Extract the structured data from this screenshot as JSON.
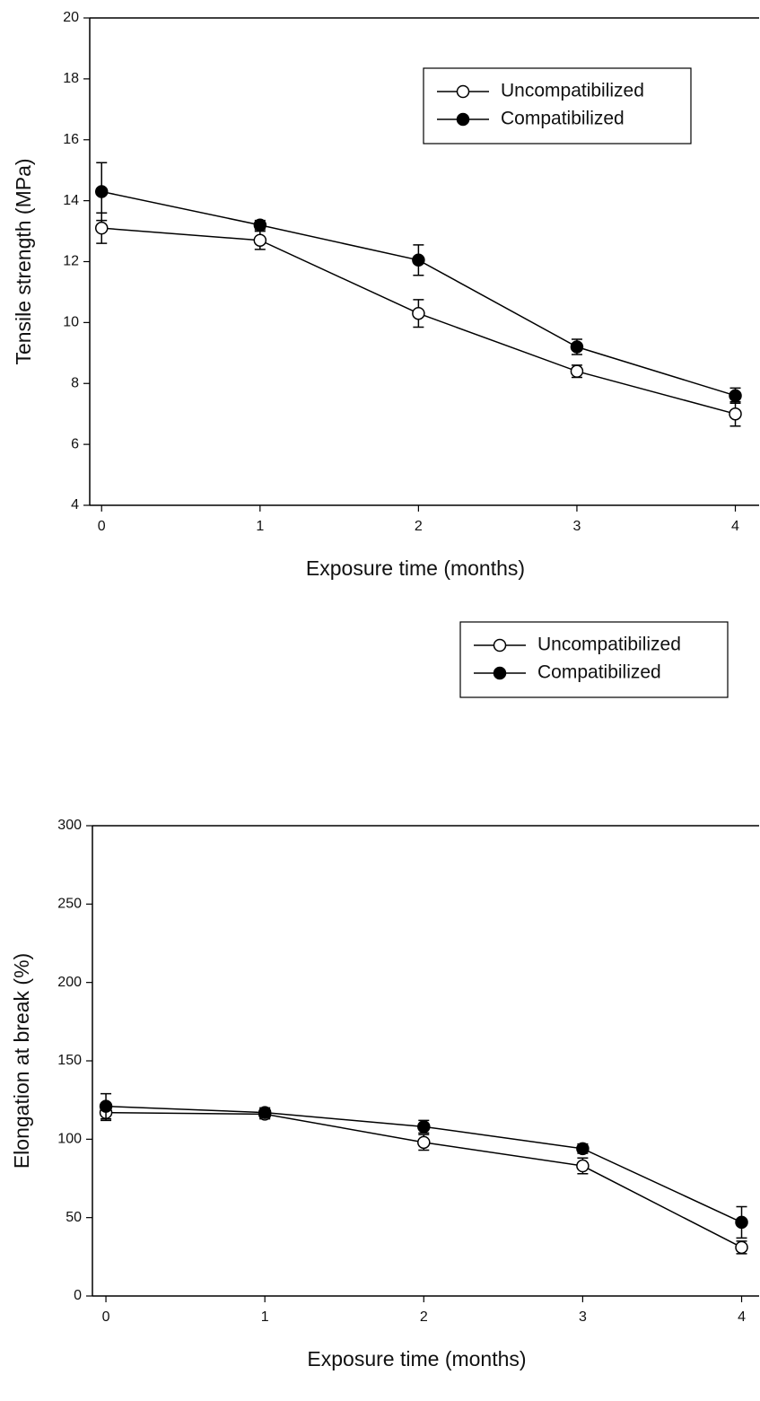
{
  "chart_data": [
    {
      "type": "line",
      "x_label": "Exposure time (months)",
      "y_label": "Tensile strength (MPa)",
      "x": [
        0,
        1,
        2,
        3,
        4
      ],
      "xlim": [
        -0.075,
        4.15
      ],
      "xticks": [
        0,
        1,
        2,
        3,
        4
      ],
      "ylim": [
        4,
        20
      ],
      "yticks": [
        4,
        6,
        8,
        10,
        12,
        14,
        16,
        18,
        20
      ],
      "legend": "upper right",
      "series": [
        {
          "name": "Uncompatibilized",
          "color": "#000000",
          "marker": "open",
          "values": [
            13.1,
            12.7,
            10.3,
            8.4,
            7.0
          ],
          "errors": [
            0.5,
            0.3,
            0.45,
            0.2,
            0.4
          ]
        },
        {
          "name": "Compatibilized",
          "color": "#000000",
          "marker": "filled",
          "values": [
            14.3,
            13.2,
            12.05,
            9.2,
            7.6
          ],
          "errors": [
            0.95,
            0.15,
            0.5,
            0.25,
            0.25
          ]
        }
      ]
    },
    {
      "type": "line",
      "x_label": "Exposure time (months)",
      "y_label": "Elongation at break (%)",
      "x": [
        0,
        1,
        2,
        3,
        4
      ],
      "xlim": [
        -0.085,
        4.11
      ],
      "xticks": [
        0,
        1,
        2,
        3,
        4
      ],
      "ylim": [
        0,
        300
      ],
      "yticks": [
        0,
        50,
        100,
        150,
        200,
        250,
        300
      ],
      "legend": "upper right",
      "series": [
        {
          "name": "Uncompatibilized",
          "color": "#000000",
          "marker": "open",
          "values": [
            117,
            116,
            98,
            83,
            31
          ],
          "errors": [
            5,
            3,
            5,
            5,
            4
          ]
        },
        {
          "name": "Compatibilized",
          "color": "#000000",
          "marker": "filled",
          "values": [
            121,
            117,
            108,
            94,
            47
          ],
          "errors": [
            8,
            3,
            4,
            3,
            10
          ]
        }
      ]
    }
  ]
}
